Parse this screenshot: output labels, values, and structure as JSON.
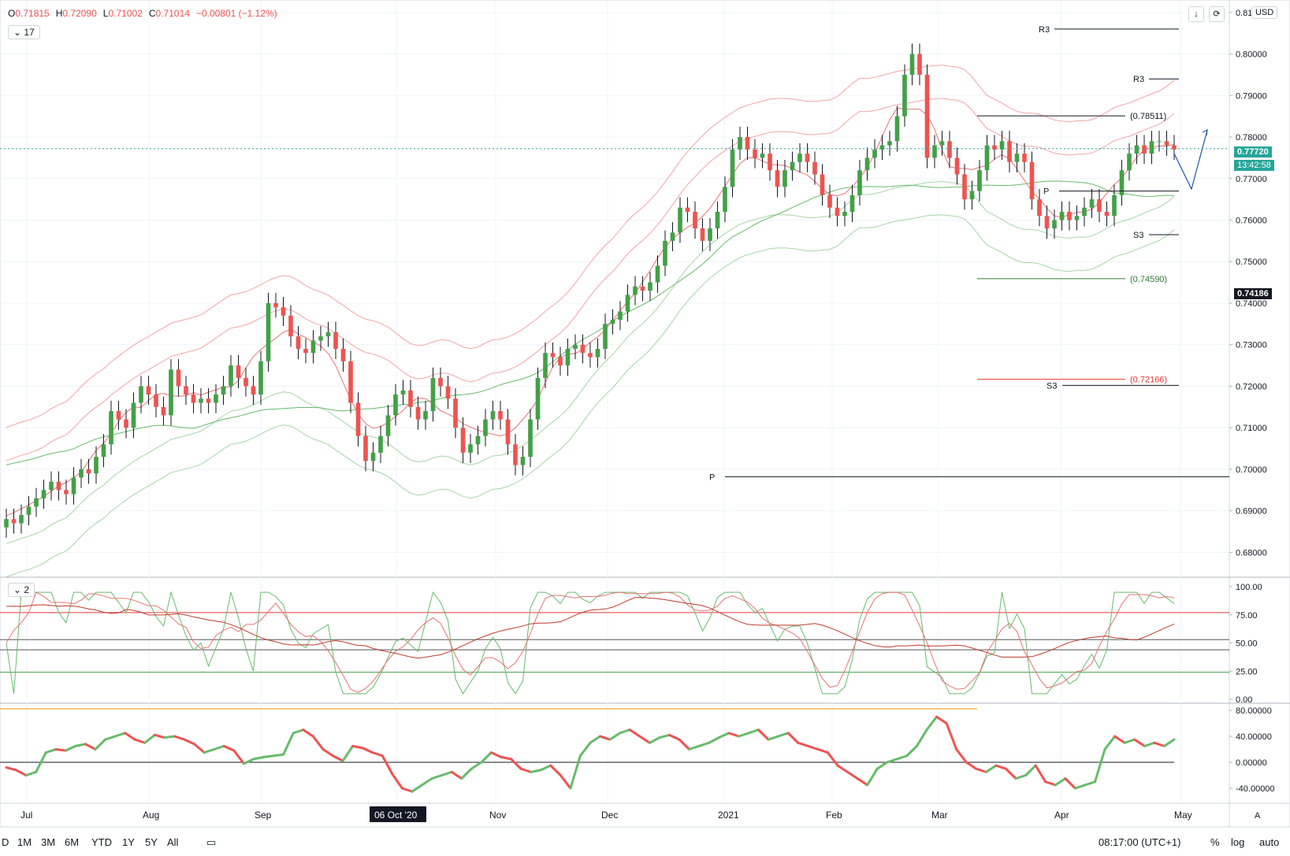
{
  "header": {
    "open_label": "O",
    "open": "0.71815",
    "high_label": "H",
    "high": "0.72090",
    "low_label": "L",
    "low": "0.71002",
    "close_label": "C",
    "close": "0.71014",
    "change": "−0.00801 (−1.12%)",
    "main_badge": "17",
    "osc_badge": "2",
    "currency": "USD"
  },
  "current_price": {
    "value": "0.77720",
    "countdown": "13:42:58",
    "y": 0.7772
  },
  "crosshair_price": {
    "value": "0.74186",
    "y": 0.74186
  },
  "bottom_bar": {
    "ranges": [
      "D",
      "1M",
      "3M",
      "6M",
      "YTD",
      "1Y",
      "5Y",
      "All"
    ],
    "time": "08:17:00 (UTC+1)",
    "percent": "%",
    "log": "log",
    "auto": "auto",
    "axis_mode": "A"
  },
  "x_axis": {
    "labels": [
      "Jul",
      "Aug",
      "Sep",
      "06 Oct '20",
      "Nov",
      "Dec",
      "2021",
      "Feb",
      "Mar",
      "Apr",
      "May"
    ],
    "highlighted": "06 Oct '20"
  },
  "chart_data": [
    {
      "type": "candlestick",
      "name": "price",
      "y_ticks": [
        "0.81000",
        "0.80000",
        "0.79000",
        "0.78000",
        "0.77000",
        "0.76000",
        "0.75000",
        "0.74000",
        "0.73000",
        "0.72000",
        "0.71000",
        "0.70000",
        "0.69000",
        "0.68000"
      ],
      "ylim": [
        0.674,
        0.813
      ],
      "levels": [
        {
          "label": "R3",
          "value": 0.806
        },
        {
          "label": "R3",
          "value": 0.794
        },
        {
          "label": "(0.78511)",
          "value": 0.78511
        },
        {
          "label": "P",
          "value": 0.767
        },
        {
          "label": "S3",
          "value": 0.7565
        },
        {
          "label": "(0.74590)",
          "value": 0.7459
        },
        {
          "label": "(0.72166)",
          "value": 0.72166
        },
        {
          "label": "S3",
          "value": 0.7202
        },
        {
          "label": "P",
          "value": 0.6982
        }
      ],
      "close_path": [
        0.688,
        0.687,
        0.689,
        0.691,
        0.693,
        0.695,
        0.697,
        0.695,
        0.694,
        0.698,
        0.7,
        0.699,
        0.703,
        0.706,
        0.714,
        0.712,
        0.71,
        0.716,
        0.72,
        0.718,
        0.715,
        0.713,
        0.724,
        0.72,
        0.718,
        0.716,
        0.717,
        0.716,
        0.718,
        0.72,
        0.725,
        0.722,
        0.72,
        0.718,
        0.726,
        0.74,
        0.739,
        0.737,
        0.732,
        0.729,
        0.728,
        0.731,
        0.732,
        0.733,
        0.729,
        0.726,
        0.716,
        0.708,
        0.702,
        0.704,
        0.708,
        0.713,
        0.718,
        0.719,
        0.715,
        0.712,
        0.714,
        0.722,
        0.72,
        0.717,
        0.71,
        0.704,
        0.706,
        0.708,
        0.712,
        0.714,
        0.712,
        0.706,
        0.701,
        0.703,
        0.712,
        0.722,
        0.728,
        0.727,
        0.725,
        0.729,
        0.73,
        0.728,
        0.727,
        0.729,
        0.735,
        0.736,
        0.738,
        0.742,
        0.744,
        0.743,
        0.745,
        0.749,
        0.755,
        0.757,
        0.763,
        0.762,
        0.758,
        0.755,
        0.758,
        0.762,
        0.768,
        0.777,
        0.78,
        0.777,
        0.775,
        0.776,
        0.772,
        0.768,
        0.772,
        0.774,
        0.776,
        0.774,
        0.771,
        0.766,
        0.763,
        0.761,
        0.762,
        0.766,
        0.772,
        0.775,
        0.777,
        0.778,
        0.779,
        0.785,
        0.795,
        0.8,
        0.795,
        0.775,
        0.778,
        0.779,
        0.775,
        0.771,
        0.765,
        0.767,
        0.772,
        0.778,
        0.777,
        0.779,
        0.774,
        0.776,
        0.774,
        0.765,
        0.761,
        0.758,
        0.76,
        0.762,
        0.76,
        0.761,
        0.763,
        0.765,
        0.762,
        0.761,
        0.766,
        0.772,
        0.776,
        0.778,
        0.776,
        0.779,
        0.779,
        0.778,
        0.777
      ]
    },
    {
      "type": "line",
      "name": "oscillator",
      "y_ticks": [
        "100.00",
        "75.00",
        "50.00",
        "25.00",
        "0.00"
      ],
      "ylim": [
        0,
        100
      ],
      "levels": [
        77,
        53,
        44,
        24
      ]
    },
    {
      "type": "line",
      "name": "momentum",
      "y_ticks": [
        "80.00000",
        "40.00000",
        "0.00000",
        "-40.00000"
      ],
      "ylim": [
        -60,
        85
      ],
      "values": [
        -8,
        -12,
        -20,
        -15,
        15,
        20,
        18,
        25,
        28,
        20,
        35,
        40,
        45,
        35,
        30,
        42,
        38,
        40,
        35,
        28,
        15,
        20,
        25,
        18,
        -2,
        5,
        8,
        10,
        12,
        45,
        50,
        40,
        20,
        10,
        2,
        25,
        22,
        15,
        10,
        -18,
        -40,
        -45,
        -35,
        -25,
        -20,
        -15,
        -25,
        -10,
        0,
        15,
        8,
        5,
        -10,
        -15,
        -12,
        -5,
        -20,
        -40,
        10,
        30,
        40,
        35,
        45,
        50,
        40,
        30,
        38,
        42,
        35,
        20,
        25,
        30,
        38,
        45,
        40,
        45,
        50,
        35,
        40,
        45,
        30,
        25,
        20,
        15,
        -5,
        -15,
        -25,
        -35,
        -10,
        0,
        5,
        10,
        25,
        50,
        70,
        60,
        20,
        0,
        -10,
        -15,
        -5,
        -10,
        -25,
        -20,
        -5,
        -30,
        -35,
        -25,
        -40,
        -35,
        -30,
        20,
        40,
        30,
        35,
        25,
        30,
        25,
        35
      ]
    }
  ]
}
